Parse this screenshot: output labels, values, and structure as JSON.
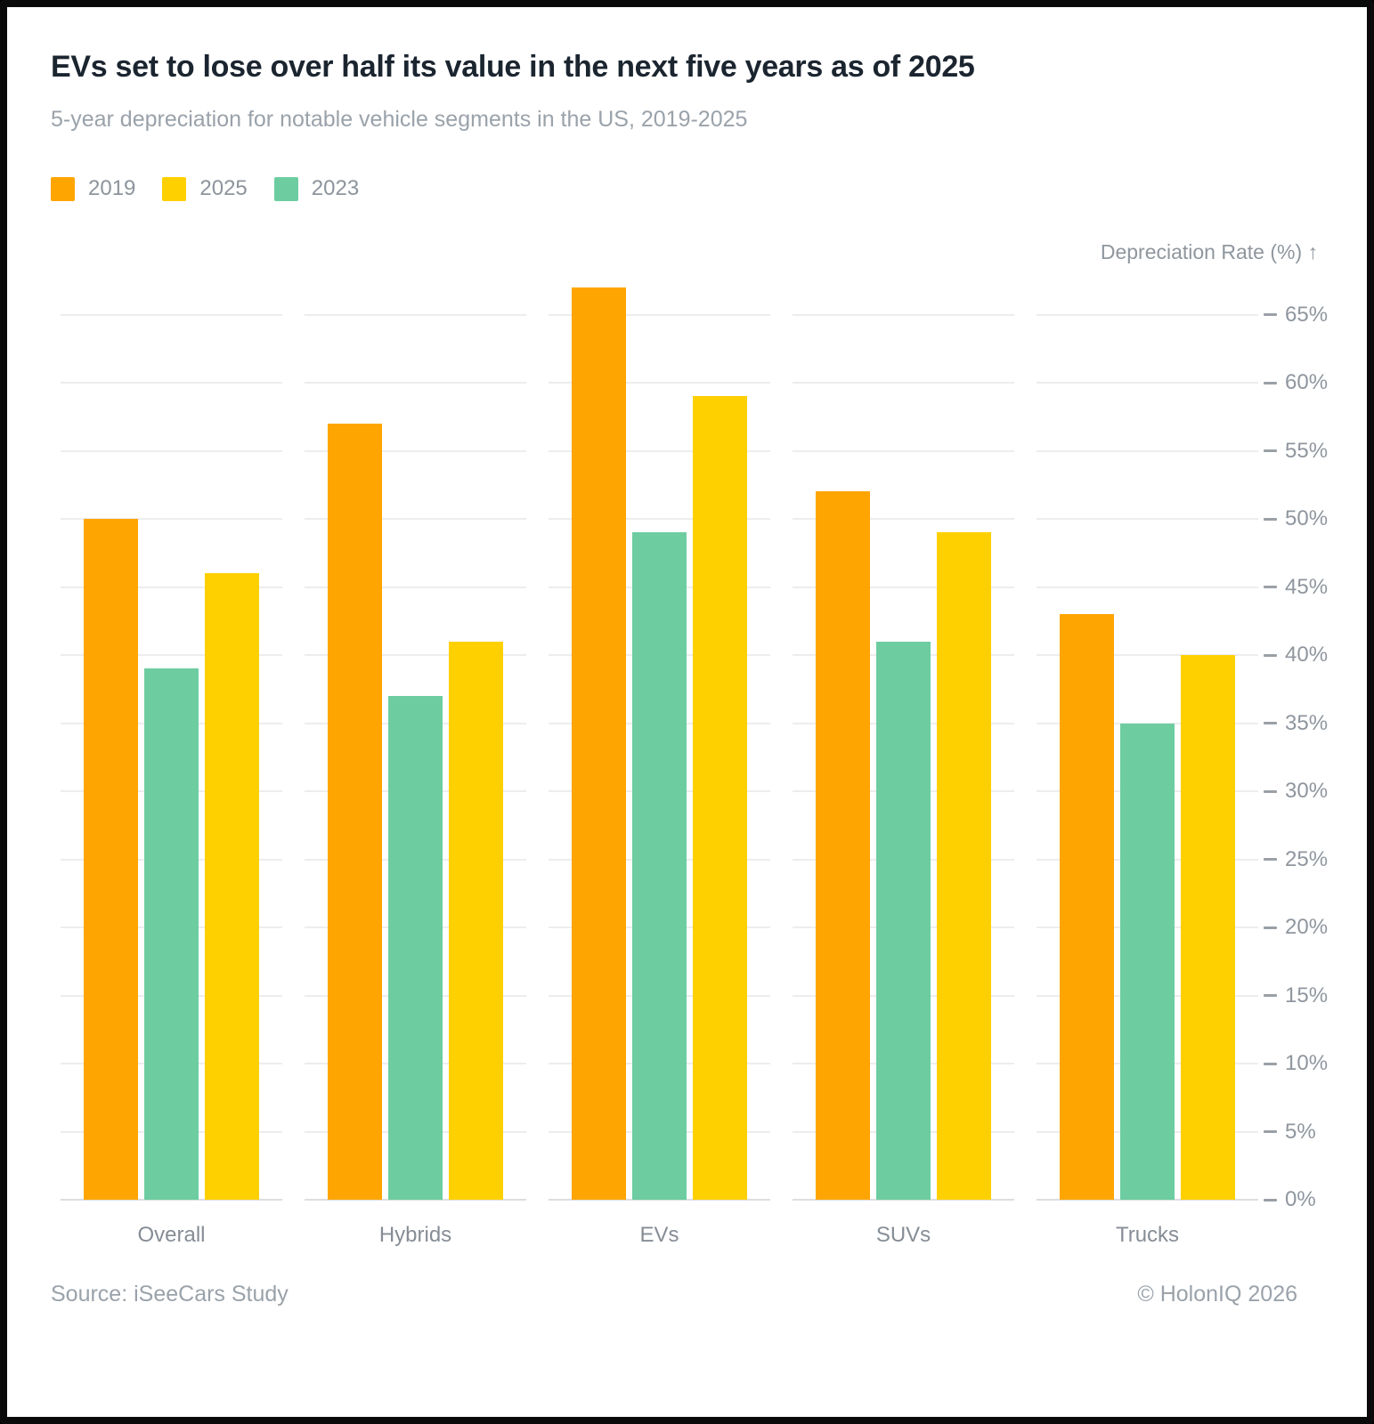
{
  "header": {
    "title": "EVs set to lose over half its value in the next five years as of 2025",
    "subtitle": "5-year depreciation for notable vehicle segments in the US, 2019-2025"
  },
  "legend": {
    "items": [
      {
        "label": "2019",
        "color": "#FFA502"
      },
      {
        "label": "2025",
        "color": "#FFD000"
      },
      {
        "label": "2023",
        "color": "#6DCDA1"
      }
    ]
  },
  "axis": {
    "title": "Depreciation Rate (%) ↑"
  },
  "chart_data": {
    "type": "bar",
    "title": "EVs set to lose over half its value in the next five years as of 2025",
    "subtitle": "5-year depreciation for notable vehicle segments in the US, 2019-2025",
    "categories": [
      "Overall",
      "Hybrids",
      "EVs",
      "SUVs",
      "Trucks"
    ],
    "series": [
      {
        "name": "2019",
        "color": "#FFA502",
        "values": [
          50,
          57,
          67,
          52,
          43
        ]
      },
      {
        "name": "2023",
        "color": "#6DCDA1",
        "values": [
          39,
          37,
          49,
          41,
          35
        ]
      },
      {
        "name": "2025",
        "color": "#FFD000",
        "values": [
          46,
          41,
          59,
          49,
          40
        ]
      }
    ],
    "bar_order_note": "bars left-to-right within each group: 2019, 2023, 2025; legend shown as 2019, 2025, 2023",
    "xlabel": "",
    "ylabel": "Depreciation Rate (%)",
    "unit": "%",
    "ylim": [
      0,
      65
    ],
    "ytick_step": 5,
    "yticks": [
      "0%",
      "5%",
      "10%",
      "15%",
      "20%",
      "25%",
      "30%",
      "35%",
      "40%",
      "45%",
      "50%",
      "55%",
      "60%",
      "65%"
    ],
    "grid": "horizontal gridlines, segmented per category panel",
    "legend_position": "top-left",
    "axis_label_position": "right"
  },
  "footer": {
    "source": "Source: iSeeCars Study",
    "copyright": "© HolonIQ 2026"
  }
}
